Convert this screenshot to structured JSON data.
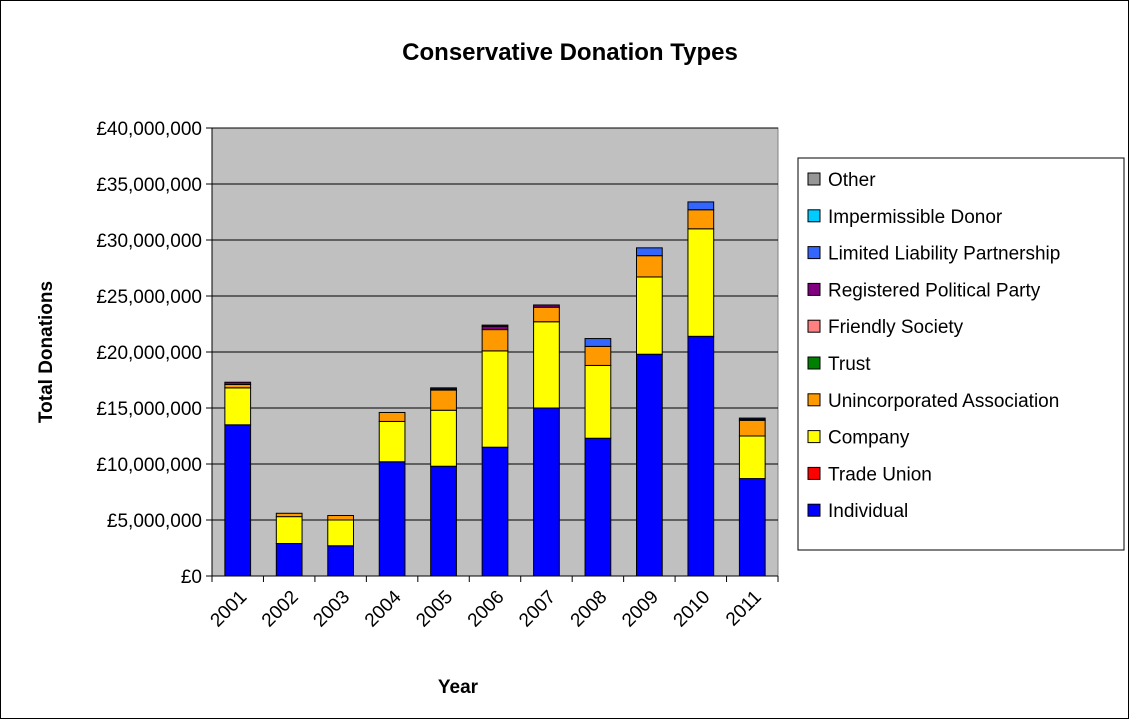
{
  "chart_data": {
    "type": "bar",
    "stacked": true,
    "title": "Conservative Donation Types",
    "xlabel": "Year",
    "ylabel": "Total Donations",
    "ylim": [
      0,
      40000000
    ],
    "y_ticks": [
      "£0",
      "£5,000,000",
      "£10,000,000",
      "£15,000,000",
      "£20,000,000",
      "£25,000,000",
      "£30,000,000",
      "£35,000,000",
      "£40,000,000"
    ],
    "y_tick_values": [
      0,
      5000000,
      10000000,
      15000000,
      20000000,
      25000000,
      30000000,
      35000000,
      40000000
    ],
    "grid": true,
    "legend_position": "right",
    "categories": [
      "2001",
      "2002",
      "2003",
      "2004",
      "2005",
      "2006",
      "2007",
      "2008",
      "2009",
      "2010",
      "2011"
    ],
    "series": [
      {
        "name": "Individual",
        "color": "#0000ff",
        "values": [
          13500000,
          2900000,
          2700000,
          10200000,
          9800000,
          11500000,
          15000000,
          12300000,
          19800000,
          21400000,
          8700000
        ]
      },
      {
        "name": "Trade Union",
        "color": "#ff0000",
        "values": [
          0,
          0,
          0,
          0,
          0,
          0,
          0,
          0,
          0,
          0,
          0
        ]
      },
      {
        "name": "Company",
        "color": "#ffff00",
        "values": [
          3300000,
          2400000,
          2300000,
          3600000,
          5000000,
          8600000,
          7700000,
          6500000,
          6900000,
          9600000,
          3800000
        ]
      },
      {
        "name": "Unincorporated Association",
        "color": "#ff9900",
        "values": [
          300000,
          300000,
          400000,
          800000,
          1800000,
          1900000,
          1300000,
          1700000,
          1900000,
          1700000,
          1400000
        ]
      },
      {
        "name": "Trust",
        "color": "#008000",
        "values": [
          0,
          0,
          0,
          0,
          0,
          0,
          0,
          0,
          0,
          0,
          0
        ]
      },
      {
        "name": "Friendly Society",
        "color": "#ff8080",
        "values": [
          0,
          0,
          0,
          0,
          0,
          0,
          0,
          0,
          0,
          0,
          0
        ]
      },
      {
        "name": "Registered Political Party",
        "color": "#800080",
        "values": [
          200000,
          0,
          0,
          0,
          100000,
          300000,
          200000,
          0,
          0,
          0,
          100000
        ]
      },
      {
        "name": "Limited Liability Partnership",
        "color": "#3366ff",
        "values": [
          0,
          0,
          0,
          0,
          100000,
          100000,
          0,
          700000,
          700000,
          700000,
          100000
        ]
      },
      {
        "name": "Impermissible Donor",
        "color": "#00ccff",
        "values": [
          0,
          0,
          0,
          0,
          0,
          0,
          0,
          0,
          0,
          0,
          0
        ]
      },
      {
        "name": "Other",
        "color": "#969696",
        "values": [
          0,
          0,
          0,
          0,
          0,
          0,
          0,
          0,
          0,
          0,
          0
        ]
      }
    ],
    "plot_background": "#c0c0c0"
  }
}
